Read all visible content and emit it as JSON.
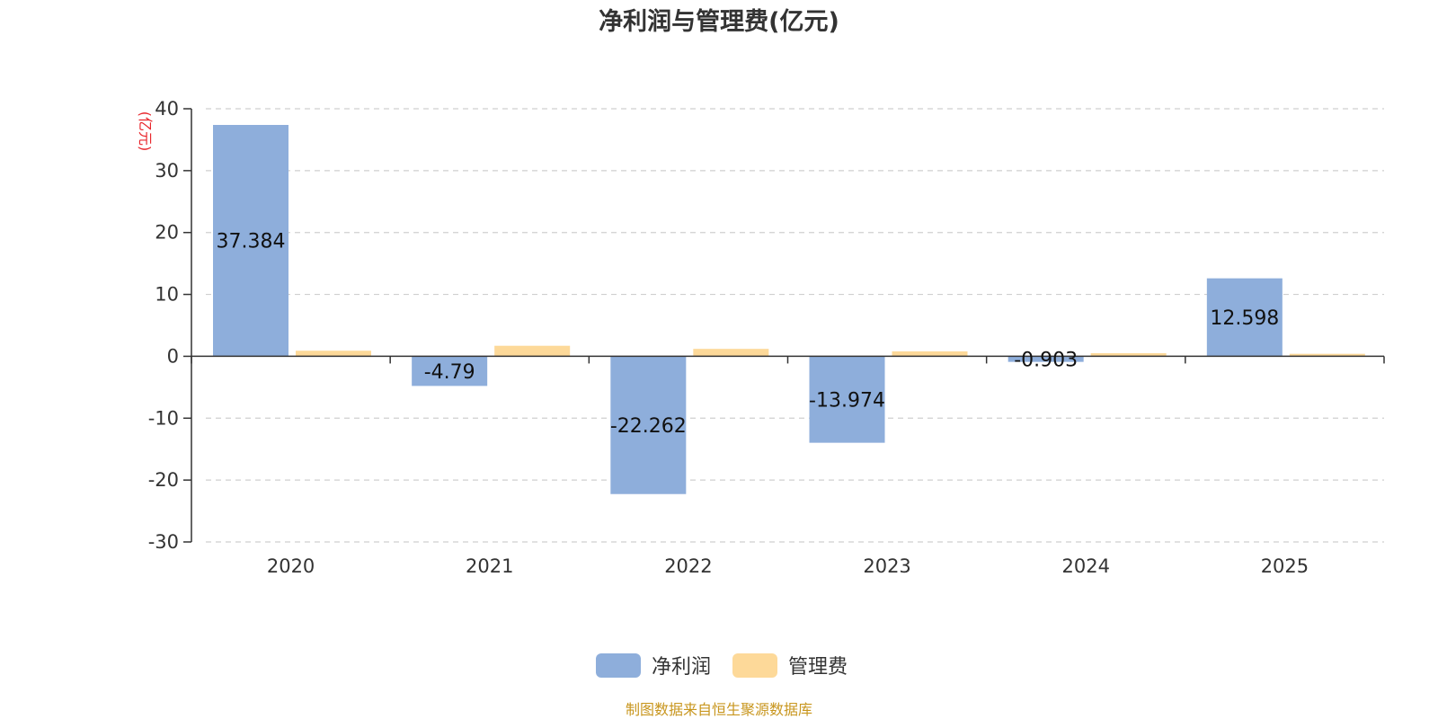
{
  "chart_data": {
    "type": "bar",
    "title": "净利润与管理费(亿元)",
    "ylabel": "(亿元)",
    "xlabel": "",
    "categories": [
      "2020",
      "2021",
      "2022",
      "2023",
      "2024",
      "2025"
    ],
    "ylim": [
      -30,
      40
    ],
    "yticks": [
      40,
      30,
      20,
      10,
      0,
      -10,
      -20,
      -30
    ],
    "grid": true,
    "legend_position": "bottom-center",
    "series": [
      {
        "name": "净利润",
        "color": "#8eaedb",
        "values": [
          37.384,
          -4.79,
          -22.262,
          -13.974,
          -0.903,
          12.598
        ],
        "labels": [
          "37.384",
          "-4.79",
          "-22.262",
          "-13.974",
          "-0.903",
          "12.598"
        ]
      },
      {
        "name": "管理费",
        "color": "#fdd999",
        "values": [
          0.9,
          1.7,
          1.2,
          0.8,
          0.5,
          0.4
        ]
      }
    ],
    "source": "制图数据来自恒生聚源数据库"
  }
}
